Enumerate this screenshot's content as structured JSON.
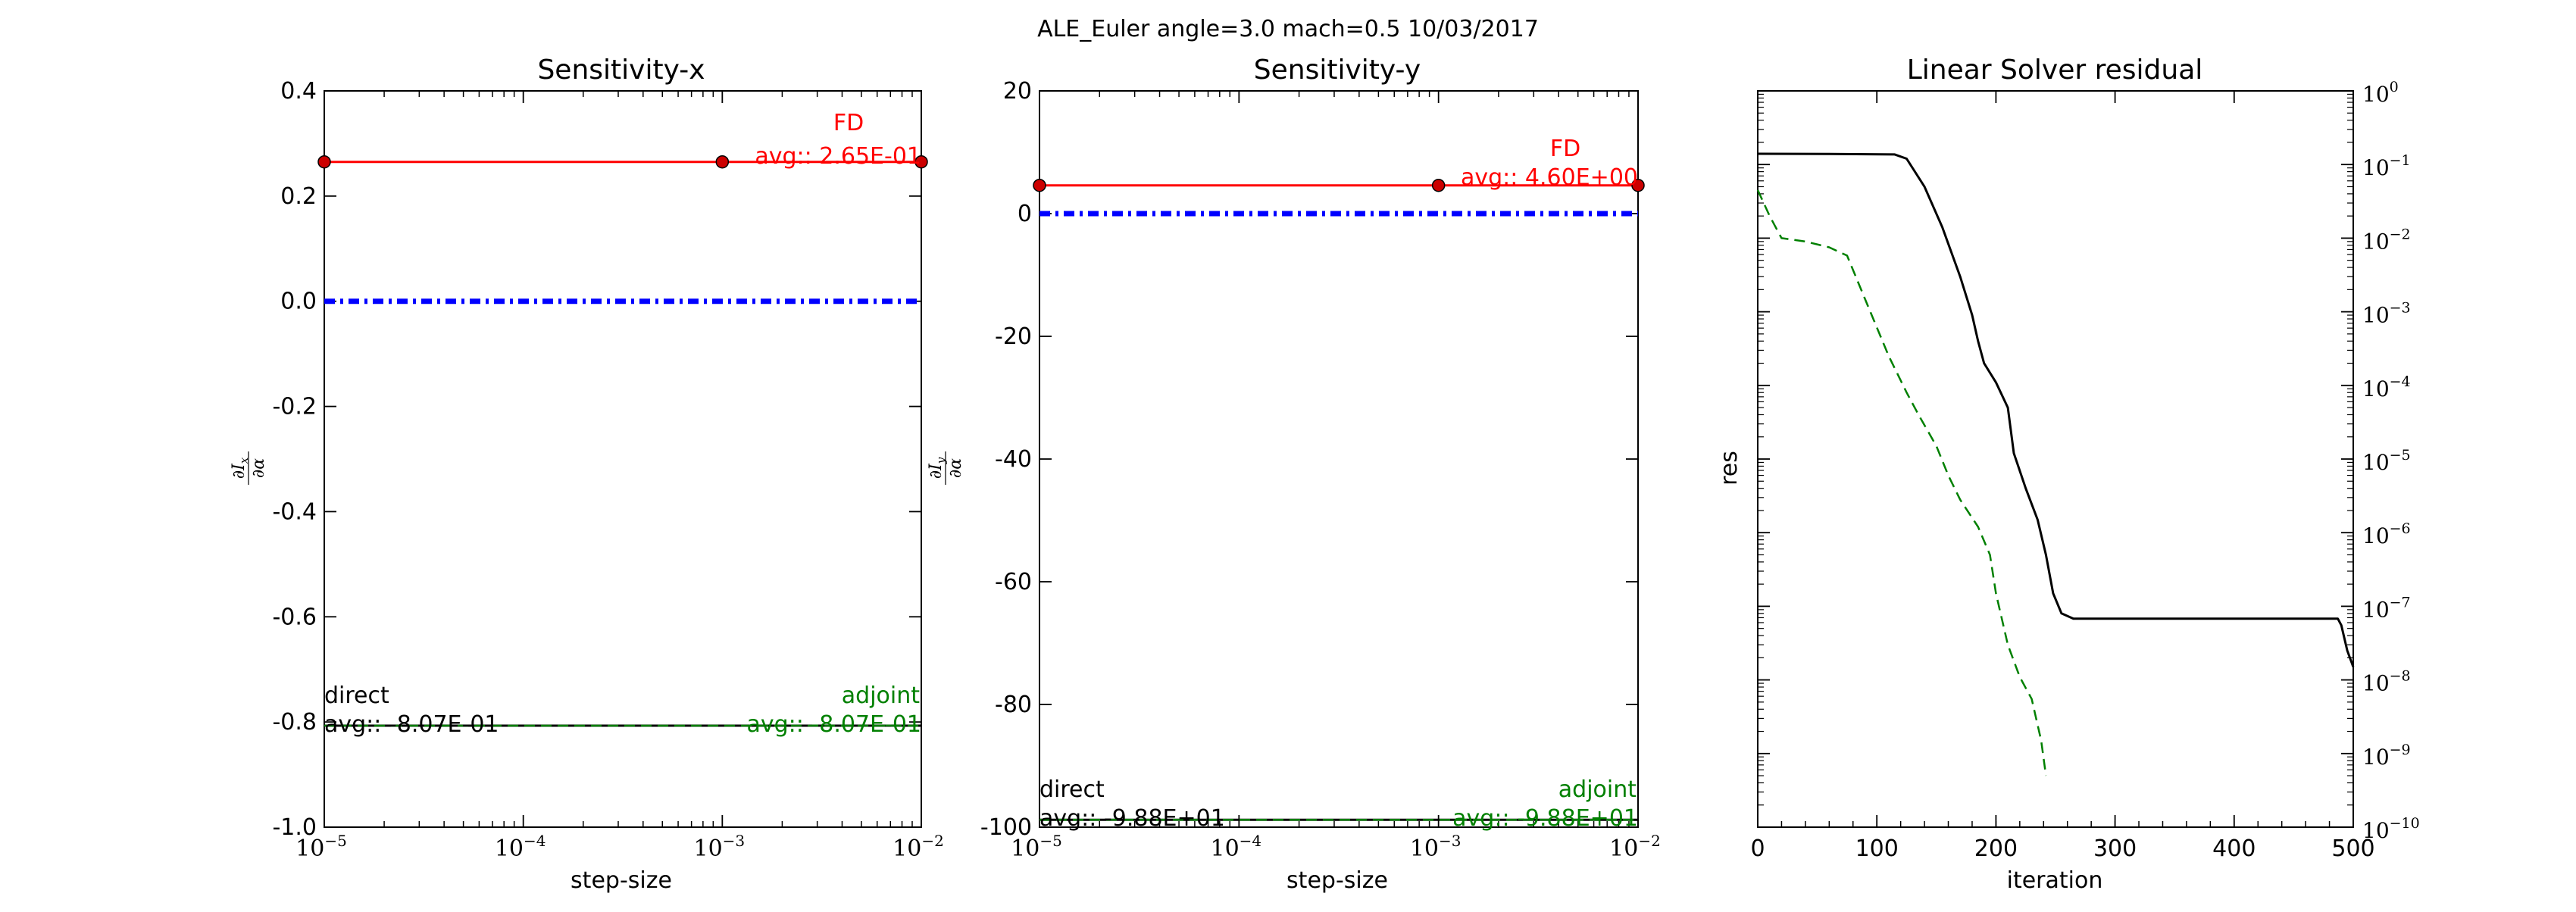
{
  "suptitle": "ALE_Euler  angle=3.0 mach=0.5 10/03/2017",
  "chart_data": [
    {
      "type": "line",
      "title": "Sensitivity-x",
      "xlabel": "step-size",
      "ylabel": "∂I_x/∂α",
      "xscale": "log",
      "xlim": [
        1e-05,
        0.01
      ],
      "ylim": [
        -1.0,
        0.4
      ],
      "xticks": [
        1e-05,
        0.0001,
        0.001,
        0.01
      ],
      "xtick_base": [
        "10",
        "10",
        "10",
        "10"
      ],
      "xtick_exp": [
        "−5",
        "−4",
        "−3",
        "−2"
      ],
      "yticks": [
        0.4,
        0.2,
        0.0,
        -0.2,
        -0.4,
        -0.6,
        -0.8,
        -1.0
      ],
      "ytick_labels": [
        "0.4",
        "0.2",
        "0.0",
        "-0.2",
        "-0.4",
        "-0.6",
        "-0.8",
        "-1.0"
      ],
      "series": [
        {
          "name": "FD",
          "color": "#ff0000",
          "style": "solid",
          "marker": "circle",
          "x": [
            1e-05,
            0.001,
            0.01
          ],
          "y": [
            0.265,
            0.265,
            0.265
          ]
        },
        {
          "name": "direct",
          "color": "#000000",
          "style": "solid",
          "x": [
            1e-05,
            0.01
          ],
          "y": [
            -0.807,
            -0.807
          ]
        },
        {
          "name": "adjoint",
          "color": "#008000",
          "style": "dashed",
          "x": [
            1e-05,
            0.01
          ],
          "y": [
            -0.807,
            -0.807
          ]
        },
        {
          "color": "#0000ff",
          "style": "dashdot",
          "x": [
            1e-05,
            0.01
          ],
          "y": [
            0.0,
            0.0
          ]
        }
      ],
      "annotations": {
        "fd_name": "FD",
        "fd_avg": "avg:: 2.65E-01",
        "direct_name": "direct",
        "direct_avg": "avg:: -8.07E-01",
        "adjoint_name": "adjoint",
        "adjoint_avg": "avg:: -8.07E-01"
      }
    },
    {
      "type": "line",
      "title": "Sensitivity-y",
      "xlabel": "step-size",
      "ylabel": "∂I_y/∂α",
      "xscale": "log",
      "xlim": [
        1e-05,
        0.01
      ],
      "ylim": [
        -100,
        20
      ],
      "xticks": [
        1e-05,
        0.0001,
        0.001,
        0.01
      ],
      "xtick_base": [
        "10",
        "10",
        "10",
        "10"
      ],
      "xtick_exp": [
        "−5",
        "−4",
        "−3",
        "−2"
      ],
      "yticks": [
        20,
        0,
        -20,
        -40,
        -60,
        -80,
        -100
      ],
      "ytick_labels": [
        "20",
        "0",
        "-20",
        "-40",
        "-60",
        "-80",
        "-100"
      ],
      "series": [
        {
          "name": "FD",
          "color": "#ff0000",
          "style": "solid",
          "marker": "circle",
          "x": [
            1e-05,
            0.001,
            0.01
          ],
          "y": [
            4.6,
            4.6,
            4.6
          ]
        },
        {
          "name": "direct",
          "color": "#000000",
          "style": "solid",
          "x": [
            1e-05,
            0.01
          ],
          "y": [
            -98.8,
            -98.8
          ]
        },
        {
          "name": "adjoint",
          "color": "#008000",
          "style": "dashed",
          "x": [
            1e-05,
            0.01
          ],
          "y": [
            -98.8,
            -98.8
          ]
        },
        {
          "color": "#0000ff",
          "style": "dashdot",
          "x": [
            1e-05,
            0.01
          ],
          "y": [
            0.0,
            0.0
          ]
        }
      ],
      "annotations": {
        "fd_name": "FD",
        "fd_avg": "avg:: 4.60E+00",
        "direct_name": "direct",
        "direct_avg": "avg:: -9.88E+01",
        "adjoint_name": "adjoint",
        "adjoint_avg": "avg:: -9.88E+01"
      }
    },
    {
      "type": "line",
      "title": "Linear Solver residual",
      "xlabel": "iteration",
      "ylabel": "res",
      "xscale": "linear",
      "yscale": "log",
      "yaxis_side": "right",
      "xlim": [
        0,
        500
      ],
      "ylim": [
        1e-10,
        1
      ],
      "xticks": [
        0,
        100,
        200,
        300,
        400,
        500
      ],
      "xtick_labels": [
        "0",
        "100",
        "200",
        "300",
        "400",
        "500"
      ],
      "ytick_exps": [
        0,
        -1,
        -2,
        -3,
        -4,
        -5,
        -6,
        -7,
        -8,
        -9,
        -10
      ],
      "ytick_base": [
        "10",
        "10",
        "10",
        "10",
        "10",
        "10",
        "10",
        "10",
        "10",
        "10",
        "10"
      ],
      "ytick_exp_labels": [
        "0",
        "−1",
        "−2",
        "−3",
        "−4",
        "−5",
        "−6",
        "−7",
        "−8",
        "−9",
        "−10"
      ],
      "series": [
        {
          "color": "#000000",
          "style": "solid",
          "x": [
            0,
            60,
            115,
            125,
            140,
            155,
            170,
            180,
            185,
            190,
            200,
            210,
            215,
            225,
            235,
            242,
            248,
            255,
            265,
            300,
            400,
            487,
            490,
            495,
            500
          ],
          "y": [
            0.14,
            0.139,
            0.137,
            0.12,
            0.05,
            0.014,
            0.003,
            0.0009,
            0.0004,
            0.0002,
            0.00011,
            5e-05,
            1.2e-05,
            4e-06,
            1.5e-06,
            5e-07,
            1.5e-07,
            8e-08,
            6.8e-08,
            6.8e-08,
            6.8e-08,
            6.8e-08,
            5.5e-08,
            2.5e-08,
            1.5e-08
          ]
        },
        {
          "color": "#008000",
          "style": "dashed",
          "x": [
            0,
            10,
            20,
            40,
            60,
            75,
            90,
            110,
            125,
            135,
            150,
            160,
            170,
            185,
            195,
            200,
            210,
            220,
            230,
            238,
            242
          ],
          "y": [
            0.045,
            0.02,
            0.01,
            0.009,
            0.0075,
            0.0058,
            0.0015,
            0.00025,
            8e-05,
            4e-05,
            1.5e-05,
            6e-06,
            2.8e-06,
            1.2e-06,
            5e-07,
            1.5e-07,
            3e-08,
            1.1e-08,
            5.5e-09,
            1.5e-09,
            5e-10
          ]
        }
      ]
    }
  ]
}
